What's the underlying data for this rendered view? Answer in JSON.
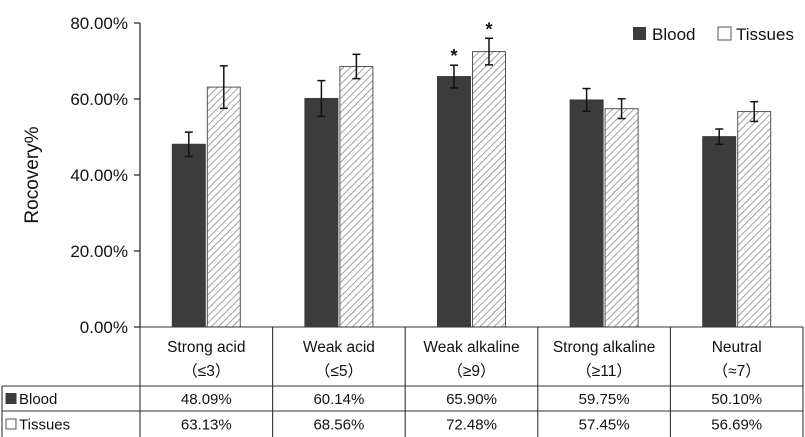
{
  "chart_data": {
    "type": "bar",
    "ylabel": "Rocovery%",
    "ylim": [
      0,
      80
    ],
    "yticks": [
      "0.00%",
      "20.00%",
      "40.00%",
      "60.00%",
      "80.00%"
    ],
    "categories": [
      {
        "name": "Strong acid",
        "sub": "（≤3）"
      },
      {
        "name": "Weak acid",
        "sub": "（≤5）"
      },
      {
        "name": "Weak alkaline",
        "sub": "（≥9）"
      },
      {
        "name": "Strong alkaline",
        "sub": "（≥11）"
      },
      {
        "name": "Neutral",
        "sub": "（≈7）"
      }
    ],
    "series": [
      {
        "name": "Blood",
        "color": "#3c3c3c",
        "pattern": "solid",
        "values": [
          48.09,
          60.14,
          65.9,
          59.75,
          50.1
        ],
        "errors": [
          3.2,
          4.7,
          3.0,
          3.0,
          2.0
        ],
        "labels": [
          "48.09%",
          "60.14%",
          "65.90%",
          "59.75%",
          "50.10%"
        ]
      },
      {
        "name": "Tissues",
        "color": "#ffffff",
        "pattern": "hatched",
        "values": [
          63.13,
          68.56,
          72.48,
          57.45,
          56.69
        ],
        "errors": [
          5.6,
          3.2,
          3.5,
          2.6,
          2.6
        ],
        "labels": [
          "63.13%",
          "68.56%",
          "72.48%",
          "57.45%",
          "56.69%"
        ]
      }
    ],
    "significance": [
      {
        "category": 2,
        "series": 0,
        "mark": "*"
      },
      {
        "category": 2,
        "series": 1,
        "mark": "*"
      }
    ],
    "legend": "top-right",
    "grid": false
  }
}
